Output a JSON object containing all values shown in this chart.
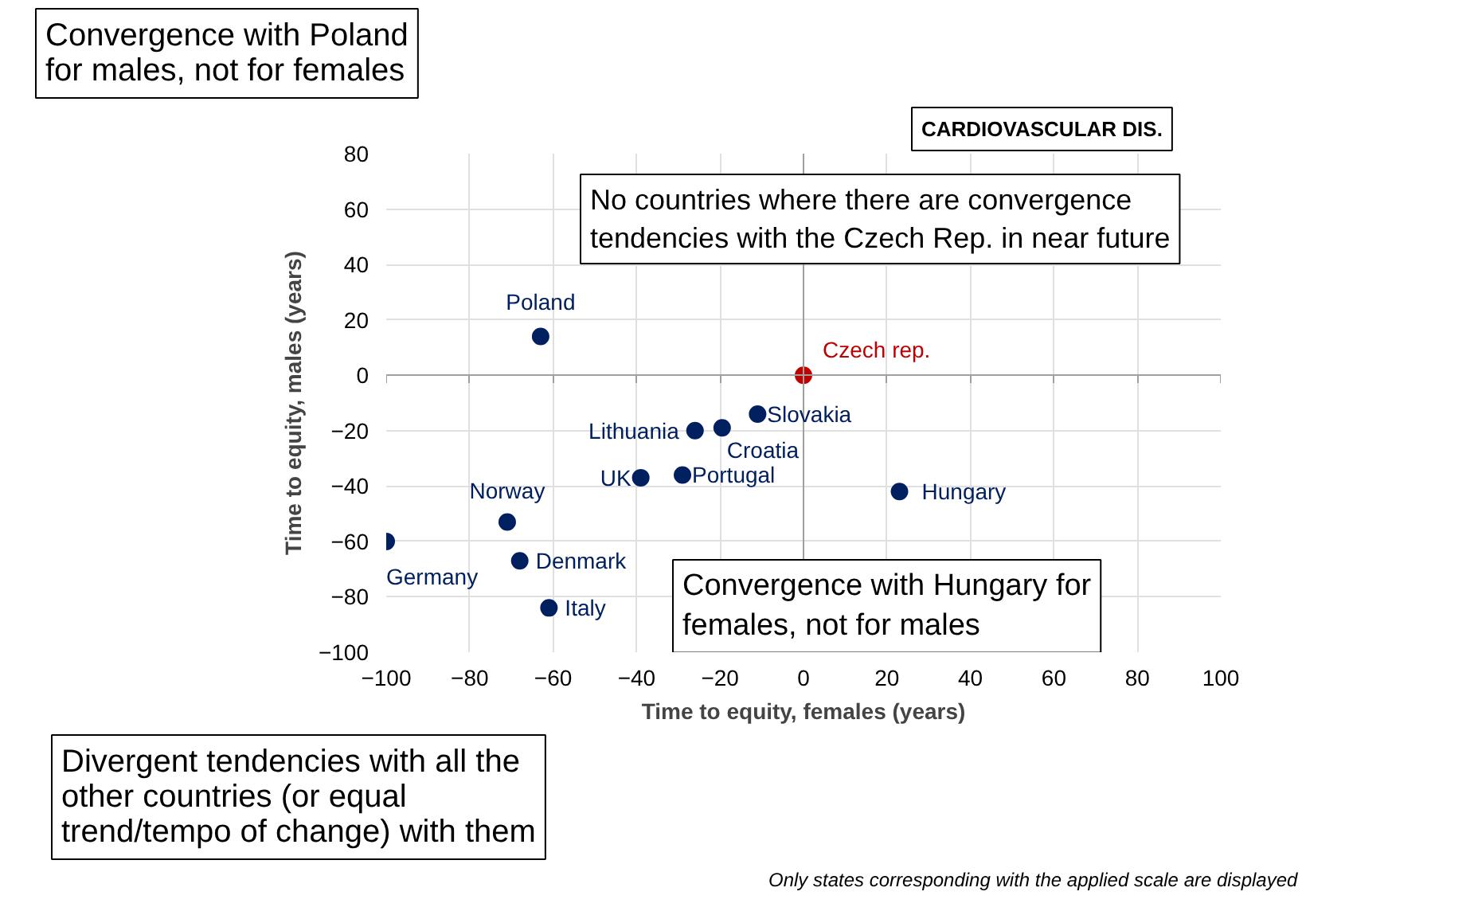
{
  "chart_data": {
    "type": "scatter",
    "title": "CARDIOVASCULAR DIS.",
    "xlabel": "Time to equity, females (years)",
    "ylabel": "Time to equity, males (years)",
    "xlim": [
      -100,
      100
    ],
    "ylim": [
      -100,
      80
    ],
    "xticks": [
      -100,
      -80,
      -60,
      -40,
      -20,
      0,
      20,
      40,
      60,
      80,
      100
    ],
    "yticks": [
      -100,
      -80,
      -60,
      -40,
      -20,
      0,
      20,
      40,
      60,
      80
    ],
    "grid": true,
    "marker": "circle",
    "legend": false,
    "series": [
      {
        "name": "Poland",
        "color": "#002060",
        "x": [
          -63
        ],
        "values": [
          14
        ]
      },
      {
        "name": "Czech rep.",
        "color": "#c00000",
        "x": [
          0
        ],
        "values": [
          0
        ]
      },
      {
        "name": "Croatia",
        "color": "#002060",
        "x": [
          -19.5
        ],
        "values": [
          -19
        ]
      },
      {
        "name": "Lithuania",
        "color": "#002060",
        "x": [
          -26
        ],
        "values": [
          -20
        ]
      },
      {
        "name": "Slovakia",
        "color": "#002060",
        "x": [
          -11
        ],
        "values": [
          -14
        ]
      },
      {
        "name": "UK",
        "color": "#002060",
        "x": [
          -39
        ],
        "values": [
          -37
        ]
      },
      {
        "name": "Portugal",
        "color": "#002060",
        "x": [
          -29
        ],
        "values": [
          -36
        ]
      },
      {
        "name": "Hungary",
        "color": "#002060",
        "x": [
          23
        ],
        "values": [
          -42
        ]
      },
      {
        "name": "Norway",
        "color": "#002060",
        "x": [
          -71
        ],
        "values": [
          -53
        ]
      },
      {
        "name": "Germany",
        "color": "#002060",
        "x": [
          -100
        ],
        "values": [
          -60
        ]
      },
      {
        "name": "Denmark",
        "color": "#002060",
        "x": [
          -68
        ],
        "values": [
          -67
        ]
      },
      {
        "name": "Italy",
        "color": "#002060",
        "x": [
          -61
        ],
        "values": [
          -84
        ]
      }
    ],
    "annotations": [
      "Convergence with Poland\nfor males, not for females",
      "No countries where there are convergence\ntendencies with the Czech Rep. in near future",
      "Convergence with Hungary for\nfemales, not for males",
      "Divergent tendencies with all the\nother countries (or equal\ntrend/tempo of change) with them",
      "Only states corresponding with the applied scale are displayed"
    ]
  }
}
